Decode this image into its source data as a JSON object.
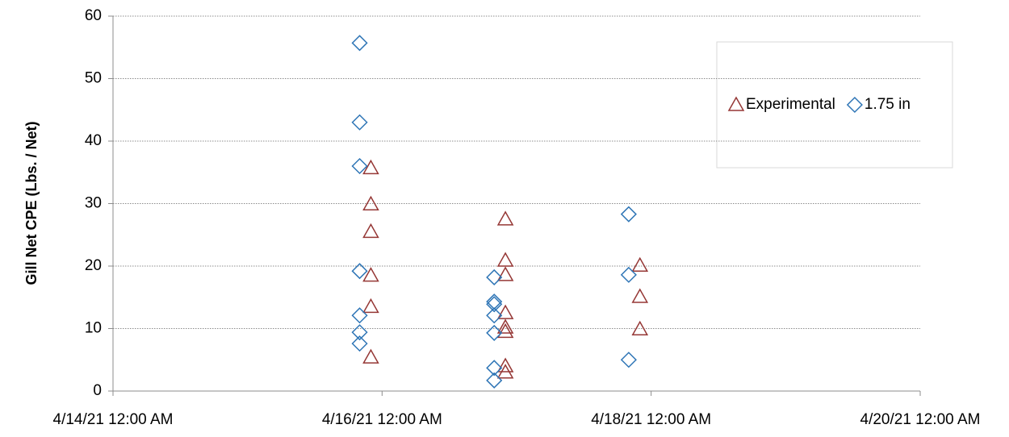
{
  "chart_data": {
    "type": "scatter",
    "ylabel": "Gill Net CPE (Lbs. / Net)",
    "xlim": [
      "2021-04-14T00:00",
      "2021-04-20T00:00"
    ],
    "xticks": [
      {
        "value": "2021-04-14T00:00",
        "label": "4/14/21 12:00 AM"
      },
      {
        "value": "2021-04-16T00:00",
        "label": "4/16/21 12:00 AM"
      },
      {
        "value": "2021-04-18T00:00",
        "label": "4/18/21 12:00 AM"
      },
      {
        "value": "2021-04-20T00:00",
        "label": "4/20/21 12:00 AM"
      }
    ],
    "ylim": [
      0,
      60
    ],
    "yticks": [
      0,
      10,
      20,
      30,
      40,
      50,
      60
    ],
    "grid": true,
    "legend_position": "right",
    "series": [
      {
        "name": "Experimental",
        "color": "#953735",
        "marker": "triangle",
        "x": [
          "2021-04-15T22:00",
          "2021-04-15T22:00",
          "2021-04-15T22:00",
          "2021-04-15T22:00",
          "2021-04-15T22:00",
          "2021-04-15T22:00",
          "2021-04-16T22:00",
          "2021-04-16T22:00",
          "2021-04-16T22:00",
          "2021-04-16T22:00",
          "2021-04-16T22:00",
          "2021-04-16T22:00",
          "2021-04-16T22:00",
          "2021-04-16T22:00",
          "2021-04-17T22:00",
          "2021-04-17T22:00",
          "2021-04-17T22:00"
        ],
        "values": [
          35.7,
          29.9,
          25.5,
          18.5,
          13.5,
          5.4,
          27.5,
          20.9,
          18.6,
          12.5,
          10.2,
          9.5,
          4.0,
          3.0,
          20.1,
          15.1,
          9.9
        ]
      },
      {
        "name": "1.75 in",
        "color": "#2e75b6",
        "marker": "diamond",
        "x": [
          "2021-04-15T20:00",
          "2021-04-15T20:00",
          "2021-04-15T20:00",
          "2021-04-15T20:00",
          "2021-04-15T20:00",
          "2021-04-15T20:00",
          "2021-04-15T20:00",
          "2021-04-16T20:00",
          "2021-04-16T20:00",
          "2021-04-16T20:00",
          "2021-04-16T20:00",
          "2021-04-16T20:00",
          "2021-04-16T20:00",
          "2021-04-16T20:00",
          "2021-04-17T20:00",
          "2021-04-17T20:00",
          "2021-04-17T20:00"
        ],
        "values": [
          55.7,
          43.0,
          36.0,
          19.2,
          12.1,
          9.4,
          7.6,
          18.2,
          14.3,
          13.9,
          12.1,
          9.3,
          3.7,
          1.7,
          28.3,
          18.6,
          5.0
        ]
      }
    ]
  }
}
